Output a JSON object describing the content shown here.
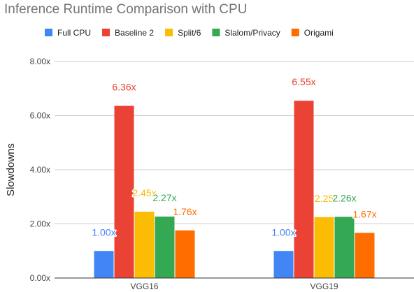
{
  "chart_data": {
    "type": "bar",
    "title": "Inference Runtime Comparison with CPU",
    "ylabel": "Slowdowns",
    "xlabel": "",
    "categories": [
      "VGG16",
      "VGG19"
    ],
    "ylim": [
      0,
      8
    ],
    "yticks": [
      0,
      2,
      4,
      6,
      8
    ],
    "ytick_labels": [
      "0.00x",
      "2.00x",
      "4.00x",
      "6.00x",
      "8.00x"
    ],
    "grid": true,
    "legend_position": "top",
    "series": [
      {
        "name": "Full CPU",
        "color": "#4285f4",
        "values": [
          1.0,
          1.0
        ],
        "labels": [
          "1.00x",
          "1.00x"
        ]
      },
      {
        "name": "Baseline 2",
        "color": "#ea4335",
        "values": [
          6.36,
          6.55
        ],
        "labels": [
          "6.36x",
          "6.55x"
        ]
      },
      {
        "name": "Split/6",
        "color": "#fbbc04",
        "values": [
          2.45,
          2.25
        ],
        "labels": [
          "2.45x",
          "2.25"
        ]
      },
      {
        "name": "Slalom/Privacy",
        "color": "#34a853",
        "values": [
          2.27,
          2.26
        ],
        "labels": [
          "2.27x",
          "2.26x"
        ]
      },
      {
        "name": "Origami",
        "color": "#ff6d01",
        "values": [
          1.76,
          1.67
        ],
        "labels": [
          "1.76x",
          "1.67x"
        ]
      }
    ]
  }
}
